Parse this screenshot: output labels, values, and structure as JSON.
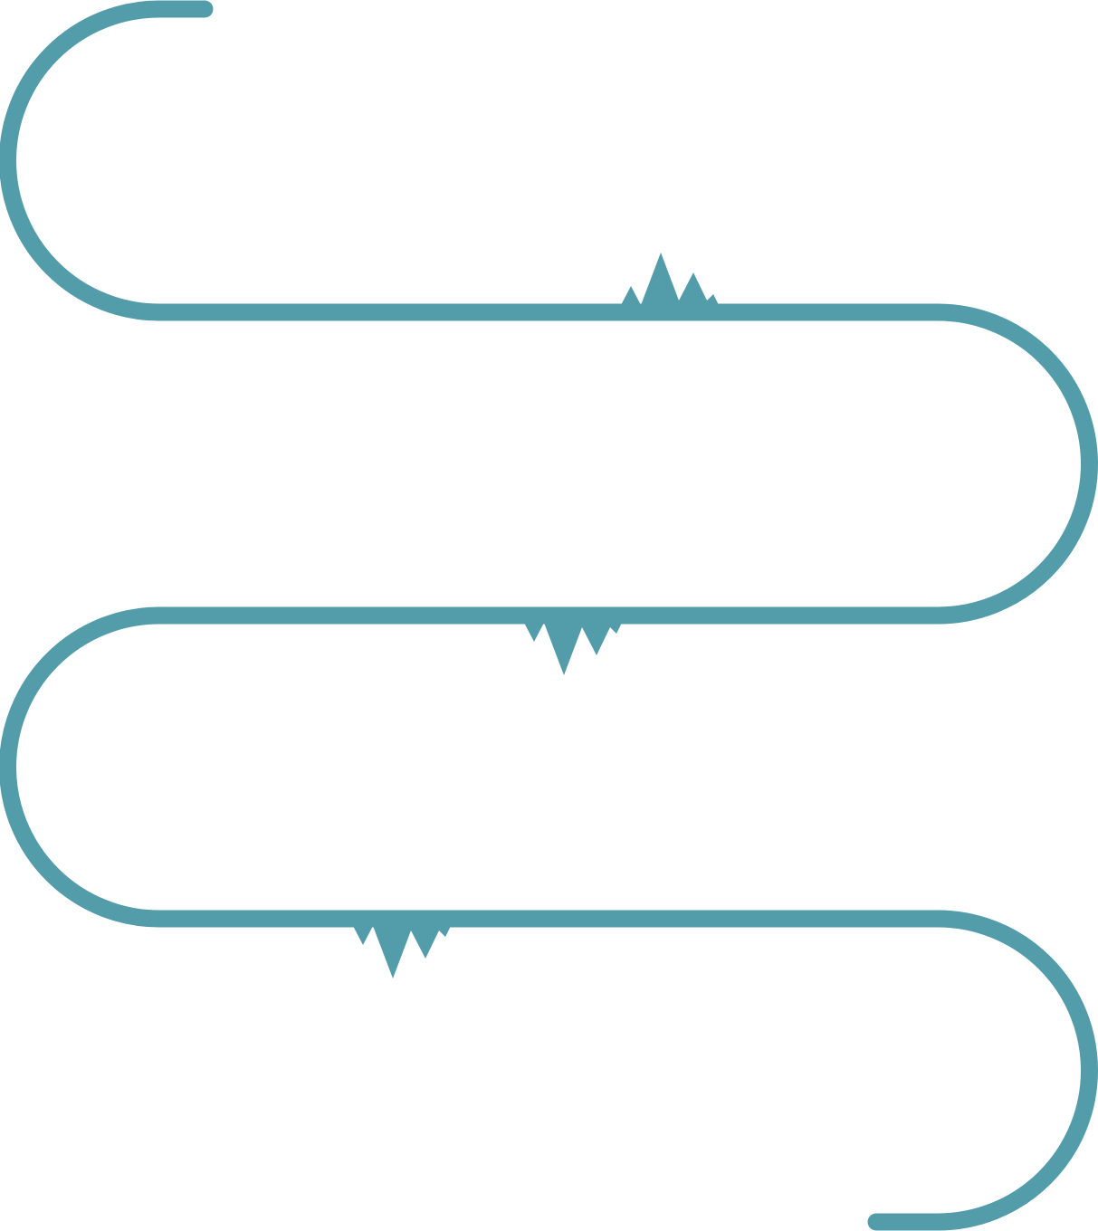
{
  "diagram": {
    "type": "winding-road-timeline",
    "line_color": "#539ca9",
    "background_color": "#ffffff",
    "segments": [
      {
        "id": "start-cap",
        "kind": "straight"
      },
      {
        "id": "top-left-curve",
        "kind": "arc"
      },
      {
        "id": "row-1",
        "kind": "straight"
      },
      {
        "id": "right-curve-1",
        "kind": "arc"
      },
      {
        "id": "row-2",
        "kind": "straight"
      },
      {
        "id": "left-curve",
        "kind": "arc"
      },
      {
        "id": "row-3",
        "kind": "straight"
      },
      {
        "id": "right-curve-2",
        "kind": "arc"
      },
      {
        "id": "end-cap",
        "kind": "straight"
      }
    ],
    "markers": [
      {
        "id": "mountain-row-1",
        "icon": "mountain-peaks-icon",
        "orientation": "up"
      },
      {
        "id": "mountain-row-2",
        "icon": "mountain-peaks-icon",
        "orientation": "down"
      },
      {
        "id": "mountain-row-3",
        "icon": "mountain-peaks-icon",
        "orientation": "down"
      }
    ]
  }
}
